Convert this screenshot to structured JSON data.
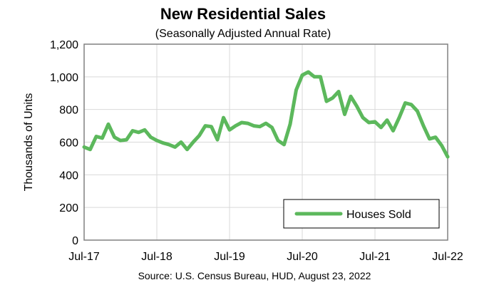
{
  "chart_data": {
    "type": "line",
    "title": "New Residential Sales",
    "subtitle": "(Seasonally Adjusted Annual Rate)",
    "ylabel": "Thousands of Units",
    "xlabel": "",
    "source": "Source:  U.S. Census Bureau, HUD, August 23, 2022",
    "ylim": [
      0,
      1200
    ],
    "yticks": [
      0,
      200,
      400,
      600,
      800,
      1000,
      1200
    ],
    "ytick_labels": [
      "0",
      "200",
      "400",
      "600",
      "800",
      "1,000",
      "1,200"
    ],
    "xticks": [
      "Jul-17",
      "Jul-18",
      "Jul-19",
      "Jul-20",
      "Jul-21",
      "Jul-22"
    ],
    "grid": true,
    "legend_position": "bottom-right",
    "series_color": "#5cb85c",
    "series": [
      {
        "name": "Houses Sold",
        "x": [
          "Jul-17",
          "Aug-17",
          "Sep-17",
          "Oct-17",
          "Nov-17",
          "Dec-17",
          "Jan-18",
          "Feb-18",
          "Mar-18",
          "Apr-18",
          "May-18",
          "Jun-18",
          "Jul-18",
          "Aug-18",
          "Sep-18",
          "Oct-18",
          "Nov-18",
          "Dec-18",
          "Jan-19",
          "Feb-19",
          "Mar-19",
          "Apr-19",
          "May-19",
          "Jun-19",
          "Jul-19",
          "Aug-19",
          "Sep-19",
          "Oct-19",
          "Nov-19",
          "Dec-19",
          "Jan-20",
          "Feb-20",
          "Mar-20",
          "Apr-20",
          "May-20",
          "Jun-20",
          "Jul-20",
          "Aug-20",
          "Sep-20",
          "Oct-20",
          "Nov-20",
          "Dec-20",
          "Jan-21",
          "Feb-21",
          "Mar-21",
          "Apr-21",
          "May-21",
          "Jun-21",
          "Jul-21",
          "Aug-21",
          "Sep-21",
          "Oct-21",
          "Nov-21",
          "Dec-21",
          "Jan-22",
          "Feb-22",
          "Mar-22",
          "Apr-22",
          "May-22",
          "Jun-22",
          "Jul-22"
        ],
        "values": [
          570,
          555,
          635,
          625,
          710,
          630,
          610,
          615,
          670,
          660,
          675,
          630,
          610,
          595,
          585,
          570,
          600,
          555,
          600,
          640,
          700,
          695,
          615,
          750,
          675,
          700,
          720,
          715,
          700,
          695,
          715,
          690,
          610,
          585,
          710,
          920,
          1010,
          1030,
          1000,
          1000,
          850,
          870,
          910,
          770,
          880,
          820,
          750,
          720,
          725,
          690,
          735,
          670,
          750,
          840,
          830,
          790,
          700,
          620,
          630,
          580,
          510
        ]
      }
    ]
  }
}
